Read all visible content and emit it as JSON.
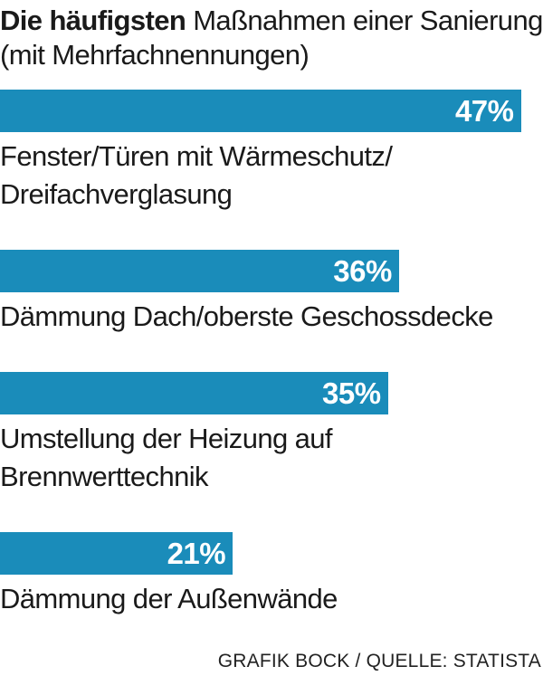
{
  "chart_data": {
    "type": "bar",
    "orientation": "horizontal",
    "title": "Die häufigsten",
    "subtitle": "Maßnahmen einer Sanierung (mit Mehrfachnennungen)",
    "categories": [
      "Fenster/Türen mit Wärmeschutz/ Dreifachverglasung",
      "Dämmung Dach/oberste Geschossdecke",
      "Umstellung der Heizung auf Brennwerttechnik",
      "Dämmung der Außenwände"
    ],
    "values": [
      47,
      36,
      35,
      21
    ],
    "value_labels": [
      "47%",
      "36%",
      "35%",
      "21%"
    ],
    "color": "#1a8cba",
    "xlim": [
      0,
      49
    ],
    "source": "GRAFIK BOCK / QUELLE: STATISTA"
  }
}
